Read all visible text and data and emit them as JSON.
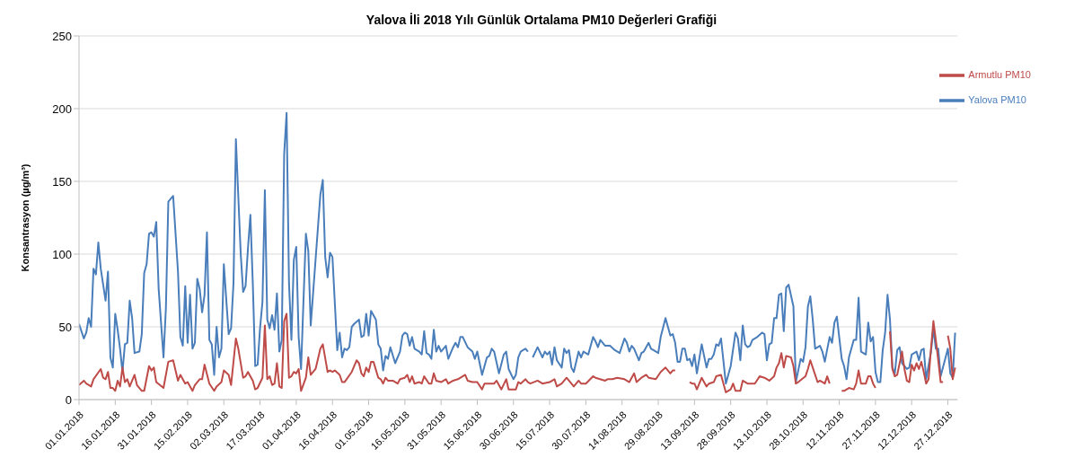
{
  "chart_data": {
    "type": "line",
    "title": "Yalova İli 2018 Yılı Günlük Ortalama PM10 Değerleri Grafiği",
    "ylabel": "Konsantrasyon (µg/m³)",
    "xlim": [
      "2018-01-01",
      "2018-12-31"
    ],
    "ylim": [
      0,
      250
    ],
    "yticks": [
      0,
      50,
      100,
      150,
      200,
      250
    ],
    "xticks": [
      {
        "value": "2018-01-01",
        "label": "01.01.2018"
      },
      {
        "value": "2018-01-16",
        "label": "16.01.2018"
      },
      {
        "value": "2018-01-31",
        "label": "31.01.2018"
      },
      {
        "value": "2018-02-15",
        "label": "15.02.2018"
      },
      {
        "value": "2018-03-02",
        "label": "02.03.2018"
      },
      {
        "value": "2018-03-17",
        "label": "17.03.2018"
      },
      {
        "value": "2018-04-01",
        "label": "01.04.2018"
      },
      {
        "value": "2018-04-16",
        "label": "16.04.2018"
      },
      {
        "value": "2018-05-01",
        "label": "01.05.2018"
      },
      {
        "value": "2018-05-16",
        "label": "16.05.2018"
      },
      {
        "value": "2018-05-31",
        "label": "31.05.2018"
      },
      {
        "value": "2018-06-15",
        "label": "15.06.2018"
      },
      {
        "value": "2018-06-30",
        "label": "30.06.2018"
      },
      {
        "value": "2018-07-15",
        "label": "15.07.2018"
      },
      {
        "value": "2018-07-30",
        "label": "30.07.2018"
      },
      {
        "value": "2018-08-14",
        "label": "14.08.2018"
      },
      {
        "value": "2018-08-29",
        "label": "29.08.2018"
      },
      {
        "value": "2018-09-13",
        "label": "13.09.2018"
      },
      {
        "value": "2018-09-28",
        "label": "28.09.2018"
      },
      {
        "value": "2018-10-13",
        "label": "13.10.2018"
      },
      {
        "value": "2018-10-28",
        "label": "28.10.2018"
      },
      {
        "value": "2018-11-12",
        "label": "12.11.2018"
      },
      {
        "value": "2018-11-27",
        "label": "27.11.2018"
      },
      {
        "value": "2018-12-12",
        "label": "12.12.2018"
      },
      {
        "value": "2018-12-27",
        "label": "27.12.2018"
      }
    ],
    "grid": "y",
    "legend": "top right",
    "marker": "none",
    "line_style": "solid",
    "series": [
      {
        "name": "Yalova PM10",
        "color": "#4a7ebb",
        "x": [
          "2018-01-01",
          "2018-01-03",
          "2018-01-04",
          "2018-01-05",
          "2018-01-06",
          "2018-01-07",
          "2018-01-08",
          "2018-01-09",
          "2018-01-10",
          "2018-01-12",
          "2018-01-13",
          "2018-01-14",
          "2018-01-15",
          "2018-01-16",
          "2018-01-17",
          "2018-01-18",
          "2018-01-19",
          "2018-01-20",
          "2018-01-21",
          "2018-01-22",
          "2018-01-23",
          "2018-01-24",
          "2018-01-26",
          "2018-01-27",
          "2018-01-28",
          "2018-01-29",
          "2018-01-30",
          "2018-01-31",
          "2018-02-01",
          "2018-02-02",
          "2018-02-03",
          "2018-02-05",
          "2018-02-06",
          "2018-02-07",
          "2018-02-09",
          "2018-02-11",
          "2018-02-12",
          "2018-02-13",
          "2018-02-14",
          "2018-02-15",
          "2018-02-16",
          "2018-02-17",
          "2018-02-18",
          "2018-02-19",
          "2018-02-20",
          "2018-02-21",
          "2018-02-22",
          "2018-02-23",
          "2018-02-24",
          "2018-02-25",
          "2018-02-26",
          "2018-02-27",
          "2018-02-28",
          "2018-03-01",
          "2018-03-02",
          "2018-03-04",
          "2018-03-05",
          "2018-03-06",
          "2018-03-07",
          "2018-03-09",
          "2018-03-10",
          "2018-03-11",
          "2018-03-12",
          "2018-03-13",
          "2018-03-14",
          "2018-03-15",
          "2018-03-16",
          "2018-03-17",
          "2018-03-18",
          "2018-03-19",
          "2018-03-20",
          "2018-03-21",
          "2018-03-22",
          "2018-03-23",
          "2018-03-24",
          "2018-03-25",
          "2018-03-26",
          "2018-03-27",
          "2018-03-28",
          "2018-03-29",
          "2018-03-30",
          "2018-03-31",
          "2018-04-01",
          "2018-04-02",
          "2018-04-03",
          "2018-04-04",
          "2018-04-05",
          "2018-04-06",
          "2018-04-07",
          "2018-04-09",
          "2018-04-11",
          "2018-04-12",
          "2018-04-13",
          "2018-04-14",
          "2018-04-15",
          "2018-04-16",
          "2018-04-18",
          "2018-04-19",
          "2018-04-20",
          "2018-04-21",
          "2018-04-22",
          "2018-04-23",
          "2018-04-24",
          "2018-04-25",
          "2018-04-27",
          "2018-04-28",
          "2018-04-29",
          "2018-04-30",
          "2018-05-01",
          "2018-05-02",
          "2018-05-04",
          "2018-05-05",
          "2018-05-06",
          "2018-05-07",
          "2018-05-08",
          "2018-05-09",
          "2018-05-10",
          "2018-05-12",
          "2018-05-14",
          "2018-05-15",
          "2018-05-16",
          "2018-05-17",
          "2018-05-18",
          "2018-05-19",
          "2018-05-20",
          "2018-05-22",
          "2018-05-23",
          "2018-05-24",
          "2018-05-25",
          "2018-05-26",
          "2018-05-27",
          "2018-05-28",
          "2018-05-29",
          "2018-05-30",
          "2018-05-31",
          "2018-06-02",
          "2018-06-03",
          "2018-06-05",
          "2018-06-06",
          "2018-06-07",
          "2018-06-08",
          "2018-06-09",
          "2018-06-11",
          "2018-06-13",
          "2018-06-14",
          "2018-06-15",
          "2018-06-17",
          "2018-06-19",
          "2018-06-20",
          "2018-06-21",
          "2018-06-22",
          "2018-06-24",
          "2018-06-26",
          "2018-06-27",
          "2018-06-28",
          "2018-06-30",
          "2018-07-01",
          "2018-07-02",
          "2018-07-03",
          "2018-07-04",
          "2018-07-05",
          "2018-07-06",
          "2018-07-07",
          "2018-07-08",
          "2018-07-10",
          "2018-07-12",
          "2018-07-13",
          "2018-07-14",
          "2018-07-15",
          "2018-07-16",
          "2018-07-17",
          "2018-07-18",
          "2018-07-20",
          "2018-07-21",
          "2018-07-22",
          "2018-07-23",
          "2018-07-24",
          "2018-07-25",
          "2018-07-27",
          "2018-07-28",
          "2018-07-29",
          "2018-07-31",
          "2018-08-02",
          "2018-08-03",
          "2018-08-04",
          "2018-08-05",
          "2018-08-07",
          "2018-08-09",
          "2018-08-11",
          "2018-08-13",
          "2018-08-15",
          "2018-08-16",
          "2018-08-17",
          "2018-08-18",
          "2018-08-19",
          "2018-08-21",
          "2018-08-22",
          "2018-08-23",
          "2018-08-25",
          "2018-08-26",
          "2018-08-27",
          "2018-08-29",
          "2018-08-30",
          "2018-09-01",
          "2018-09-03",
          "2018-09-04",
          "2018-09-05",
          "2018-09-06",
          "2018-09-07",
          "2018-09-08",
          "2018-09-09",
          "2018-09-10",
          "2018-09-11",
          "2018-09-12",
          "2018-09-13",
          "2018-09-14",
          "2018-09-16",
          "2018-09-18",
          "2018-09-19",
          "2018-09-20",
          "2018-09-21",
          "2018-09-22",
          "2018-09-23",
          "2018-09-24",
          "2018-09-26",
          "2018-09-28",
          "2018-09-30",
          "2018-10-01",
          "2018-10-02",
          "2018-10-03",
          "2018-10-04",
          "2018-10-05",
          "2018-10-06",
          "2018-10-07",
          "2018-10-09",
          "2018-10-11",
          "2018-10-12",
          "2018-10-13",
          "2018-10-14",
          "2018-10-15",
          "2018-10-16",
          "2018-10-17",
          "2018-10-18",
          "2018-10-19",
          "2018-10-20",
          "2018-10-21",
          "2018-10-22",
          "2018-10-24",
          "2018-10-25",
          "2018-10-27",
          "2018-10-28",
          "2018-10-29",
          "2018-10-30",
          "2018-10-31",
          "2018-11-01",
          "2018-11-02",
          "2018-11-04",
          "2018-11-05",
          "2018-11-06",
          "2018-11-08",
          "2018-11-09",
          "2018-11-10",
          "2018-11-11",
          "2018-11-13",
          "2018-11-14",
          "2018-11-15",
          "2018-11-16",
          "2018-11-18",
          "2018-11-19",
          "2018-11-20",
          "2018-11-21",
          "2018-11-23",
          "2018-11-24",
          "2018-11-25",
          "2018-11-26",
          "2018-11-27",
          "2018-11-28",
          "2018-11-29",
          "2018-11-30",
          "2018-12-01",
          "2018-12-02",
          "2018-12-03",
          "2018-12-04",
          "2018-12-05",
          "2018-12-06",
          "2018-12-07",
          "2018-12-08",
          "2018-12-10",
          "2018-12-11",
          "2018-12-12",
          "2018-12-14",
          "2018-12-15",
          "2018-12-16",
          "2018-12-17",
          "2018-12-18",
          "2018-12-20",
          "2018-12-21",
          "2018-12-22",
          "2018-12-23",
          "2018-12-24",
          "2018-12-27",
          "2018-12-28",
          "2018-12-29",
          "2018-12-30"
        ],
        "values": [
          52,
          42,
          46,
          56,
          50,
          90,
          86,
          108,
          90,
          68,
          88,
          29,
          22,
          59,
          48,
          35,
          19,
          38,
          39,
          68,
          56,
          32,
          33,
          45,
          87,
          93,
          114,
          115,
          112,
          122,
          76,
          29,
          63,
          136,
          140,
          88,
          43,
          37,
          78,
          39,
          72,
          35,
          39,
          83,
          76,
          60,
          72,
          115,
          41,
          38,
          17,
          50,
          29,
          35,
          93,
          45,
          49,
          80,
          179,
          100,
          74,
          78,
          104,
          127,
          80,
          23,
          24,
          49,
          67,
          144,
          55,
          49,
          58,
          48,
          73,
          33,
          41,
          169,
          197,
          80,
          41,
          96,
          105,
          43,
          21,
          68,
          114,
          102,
          51,
          96,
          141,
          151,
          98,
          84,
          101,
          98,
          34,
          46,
          29,
          35,
          34,
          36,
          50,
          52,
          55,
          43,
          44,
          59,
          44,
          61,
          55,
          38,
          35,
          20,
          30,
          28,
          36,
          25,
          33,
          44,
          46,
          45,
          37,
          43,
          35,
          33,
          31,
          47,
          32,
          31,
          28,
          48,
          33,
          37,
          33,
          37,
          28,
          36,
          39,
          36,
          43,
          43,
          36,
          33,
          28,
          33,
          17,
          29,
          30,
          35,
          33,
          18,
          31,
          33,
          21,
          14,
          17,
          29,
          33,
          34,
          35,
          33,
          null,
          29,
          36,
          29,
          33,
          31,
          33,
          24,
          36,
          27,
          22,
          35,
          32,
          34,
          22,
          19,
          33,
          29,
          33,
          31,
          43,
          40,
          36,
          41,
          37,
          37,
          34,
          32,
          42,
          39,
          33,
          37,
          35,
          27,
          32,
          33,
          39,
          35,
          34,
          32,
          43,
          56,
          44,
          45,
          39,
          26,
          26,
          35,
          35,
          27,
          28,
          23,
          31,
          18,
          38,
          22,
          28,
          28,
          31,
          38,
          37,
          42,
          11,
          23,
          46,
          42,
          27,
          51,
          38,
          36,
          37,
          41,
          43,
          46,
          45,
          27,
          38,
          39,
          56,
          56,
          72,
          73,
          47,
          77,
          79,
          64,
          12,
          28,
          26,
          36,
          64,
          71,
          55,
          35,
          37,
          33,
          26,
          43,
          39,
          53,
          57,
          28,
          23,
          14,
          29,
          41,
          41,
          70,
          33,
          31,
          53,
          40,
          43,
          19,
          12,
          12,
          34,
          46,
          72,
          55,
          22,
          18,
          34,
          36,
          25,
          21,
          22,
          31,
          33,
          27,
          34,
          35,
          14,
          33,
          49,
          35,
          35,
          16,
          35,
          18,
          15,
          46
        ]
      },
      {
        "name": "Armutlu PM10",
        "color": "#be4b48",
        "x": [
          "2018-01-01",
          "2018-01-03",
          "2018-01-04",
          "2018-01-06",
          "2018-01-07",
          "2018-01-10",
          "2018-01-11",
          "2018-01-12",
          "2018-01-13",
          "2018-01-14",
          "2018-01-15",
          "2018-01-16",
          "2018-01-17",
          "2018-01-18",
          "2018-01-19",
          "2018-01-20",
          "2018-01-21",
          "2018-01-22",
          "2018-01-24",
          "2018-01-25",
          "2018-01-27",
          "2018-01-28",
          "2018-01-30",
          "2018-01-31",
          "2018-02-01",
          "2018-02-02",
          "2018-02-05",
          "2018-02-07",
          "2018-02-09",
          "2018-02-11",
          "2018-02-12",
          "2018-02-14",
          "2018-02-15",
          "2018-02-17",
          "2018-02-18",
          "2018-02-20",
          "2018-02-21",
          "2018-02-22",
          "2018-02-24",
          "2018-02-26",
          "2018-02-27",
          "2018-03-01",
          "2018-03-02",
          "2018-03-04",
          "2018-03-05",
          "2018-03-07",
          "2018-03-08",
          "2018-03-10",
          "2018-03-11",
          "2018-03-12",
          "2018-03-14",
          "2018-03-15",
          "2018-03-16",
          "2018-03-18",
          "2018-03-19",
          "2018-03-20",
          "2018-03-21",
          "2018-03-22",
          "2018-03-23",
          "2018-03-24",
          "2018-03-25",
          "2018-03-26",
          "2018-03-27",
          "2018-03-28",
          "2018-03-29",
          "2018-03-30",
          "2018-03-31",
          "2018-04-01",
          "2018-04-02",
          "2018-04-03",
          "2018-04-05",
          "2018-04-06",
          "2018-04-07",
          "2018-04-09",
          "2018-04-11",
          "2018-04-12",
          "2018-04-14",
          "2018-04-15",
          "2018-04-16",
          "2018-04-17",
          "2018-04-19",
          "2018-04-20",
          "2018-04-21",
          "2018-04-24",
          "2018-04-26",
          "2018-04-27",
          "2018-04-28",
          "2018-04-29",
          "2018-04-30",
          "2018-05-01",
          "2018-05-02",
          "2018-05-03",
          "2018-05-05",
          "2018-05-06",
          "2018-05-07",
          "2018-05-08",
          "2018-05-09",
          "2018-05-11",
          "2018-05-13",
          "2018-05-14",
          "2018-05-16",
          "2018-05-17",
          "2018-05-18",
          "2018-05-19",
          "2018-05-20",
          "2018-05-22",
          "2018-05-23",
          "2018-05-24",
          "2018-05-26",
          "2018-05-27",
          "2018-05-28",
          "2018-05-29",
          "2018-05-31",
          "2018-06-02",
          "2018-06-03",
          "2018-06-05",
          "2018-06-07",
          "2018-06-10",
          "2018-06-11",
          "2018-06-13",
          "2018-06-15",
          "2018-06-17",
          "2018-06-18",
          "2018-06-20",
          "2018-06-22",
          "2018-06-23",
          "2018-06-25",
          "2018-06-27",
          "2018-06-28",
          "2018-07-01",
          "2018-07-02",
          "2018-07-03",
          "2018-07-05",
          "2018-07-06",
          "2018-07-07",
          "2018-07-10",
          "2018-07-12",
          "2018-07-15",
          "2018-07-17",
          "2018-07-18",
          "2018-07-20",
          "2018-07-22",
          "2018-07-25",
          "2018-07-27",
          "2018-07-28",
          "2018-07-30",
          "2018-08-02",
          "2018-08-03",
          "2018-08-07",
          "2018-08-08",
          "2018-08-10",
          "2018-08-12",
          "2018-08-15",
          "2018-08-17",
          "2018-08-19",
          "2018-08-20",
          "2018-08-22",
          "2018-08-24",
          "2018-08-25",
          "2018-08-28",
          "2018-08-30",
          "2018-09-01",
          "2018-09-02",
          "2018-09-03",
          "2018-09-04",
          "2018-09-05",
          "2018-09-06",
          "2018-09-11",
          "2018-09-12",
          "2018-09-13",
          "2018-09-14",
          "2018-09-16",
          "2018-09-18",
          "2018-09-19",
          "2018-09-21",
          "2018-09-22",
          "2018-09-24",
          "2018-09-26",
          "2018-09-28",
          "2018-09-29",
          "2018-09-30",
          "2018-10-02",
          "2018-10-03",
          "2018-10-05",
          "2018-10-06",
          "2018-10-08",
          "2018-10-10",
          "2018-10-12",
          "2018-10-14",
          "2018-10-16",
          "2018-10-17",
          "2018-10-18",
          "2018-10-19",
          "2018-10-20",
          "2018-10-21",
          "2018-10-23",
          "2018-10-24",
          "2018-10-25",
          "2018-10-26",
          "2018-10-29",
          "2018-10-30",
          "2018-10-31",
          "2018-11-01",
          "2018-11-03",
          "2018-11-04",
          "2018-11-06",
          "2018-11-07",
          "2018-11-08",
          "2018-11-09",
          "2018-11-13",
          "2018-11-14",
          "2018-11-16",
          "2018-11-18",
          "2018-11-19",
          "2018-11-20",
          "2018-11-21",
          "2018-11-23",
          "2018-11-24",
          "2018-11-25",
          "2018-11-26",
          "2018-11-27",
          "2018-11-28",
          "2018-12-03",
          "2018-12-04",
          "2018-12-05",
          "2018-12-06",
          "2018-12-08",
          "2018-12-09",
          "2018-12-10",
          "2018-12-11",
          "2018-12-12",
          "2018-12-13",
          "2018-12-14",
          "2018-12-15",
          "2018-12-16",
          "2018-12-17",
          "2018-12-18",
          "2018-12-19",
          "2018-12-20",
          "2018-12-21",
          "2018-12-22",
          "2018-12-23",
          "2018-12-24",
          "2018-12-25",
          "2018-12-26",
          "2018-12-27",
          "2018-12-28",
          "2018-12-29",
          "2018-12-30"
        ],
        "values": [
          10,
          13,
          11,
          9,
          14,
          21,
          15,
          14,
          19,
          8,
          8,
          6,
          13,
          9,
          22,
          12,
          14,
          9,
          17,
          10,
          6,
          6,
          23,
          20,
          22,
          12,
          8,
          26,
          27,
          13,
          17,
          11,
          12,
          6,
          10,
          14,
          14,
          24,
          11,
          6,
          9,
          12,
          20,
          17,
          10,
          42,
          35,
          15,
          16,
          19,
          13,
          7,
          8,
          15,
          51,
          14,
          16,
          10,
          11,
          25,
          9,
          8,
          54,
          59,
          15,
          16,
          19,
          18,
          21,
          6,
          15,
          29,
          17,
          21,
          35,
          38,
          19,
          20,
          19,
          20,
          17,
          12,
          12,
          19,
          27,
          25,
          18,
          16,
          22,
          19,
          26,
          26,
          15,
          14,
          11,
          15,
          13,
          13,
          11,
          14,
          15,
          17,
          12,
          16,
          11,
          12,
          11,
          16,
          11,
          11,
          18,
          13,
          12,
          14,
          11,
          13,
          14,
          17,
          13,
          12,
          12,
          7,
          11,
          11,
          11,
          13,
          7,
          14,
          7,
          7,
          12,
          11,
          14,
          12,
          11,
          13,
          11,
          12,
          14,
          9,
          11,
          15,
          9,
          13,
          11,
          11,
          16,
          15,
          13,
          14,
          14,
          15,
          14,
          12,
          18,
          12,
          15,
          17,
          15,
          14,
          19,
          22,
          20,
          18,
          20,
          20,
          null,
          12,
          11,
          11,
          7,
          15,
          9,
          11,
          12,
          16,
          17,
          5,
          7,
          11,
          6,
          6,
          13,
          11,
          11,
          11,
          16,
          15,
          13,
          16,
          22,
          25,
          32,
          22,
          30,
          29,
          23,
          11,
          12,
          16,
          21,
          27,
          22,
          12,
          13,
          11,
          16,
          11,
          null,
          6,
          6,
          8,
          7,
          11,
          20,
          11,
          11,
          16,
          16,
          11,
          8,
          null,
          47,
          21,
          16,
          17,
          33,
          21,
          13,
          12,
          24,
          20,
          25,
          21,
          26,
          19,
          11,
          14,
          35,
          54,
          41,
          27,
          12,
          12,
          null,
          44,
          35,
          14,
          22
        ]
      }
    ]
  }
}
